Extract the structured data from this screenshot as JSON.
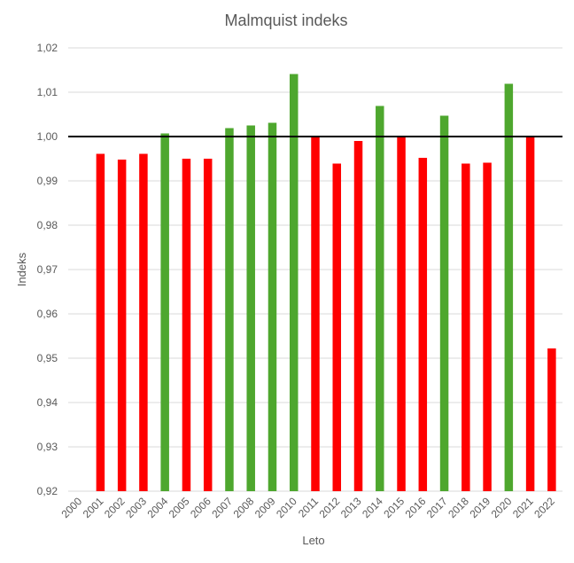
{
  "chart_data": {
    "type": "bar",
    "title": "Malmquist indeks",
    "xlabel": "Leto",
    "ylabel": "Indeks",
    "ylim": [
      0.92,
      1.02
    ],
    "yticks": [
      "0,92",
      "0,93",
      "0,94",
      "0,95",
      "0,96",
      "0,97",
      "0,98",
      "0,99",
      "1,00",
      "1,01",
      "1,02"
    ],
    "categories": [
      "2000",
      "2001",
      "2002",
      "2003",
      "2004",
      "2005",
      "2006",
      "2007",
      "2008",
      "2009",
      "2010",
      "2011",
      "2012",
      "2013",
      "2014",
      "2015",
      "2016",
      "2017",
      "2018",
      "2019",
      "2020",
      "2021",
      "2022"
    ],
    "values": [
      null,
      0.9961,
      0.9948,
      0.9961,
      1.0007,
      0.995,
      0.995,
      1.0019,
      1.0025,
      1.0031,
      1.0141,
      0.9999,
      0.9939,
      0.999,
      1.0069,
      0.9999,
      0.9952,
      1.0047,
      0.9939,
      0.9941,
      1.0119,
      1.0,
      0.9522
    ],
    "reference_line": 1.0,
    "colors": {
      "increase": "#4ea72e",
      "decrease": "#ff0000",
      "reference": "#000000",
      "grid": "#d9d9d9",
      "text": "#595959"
    },
    "grid": true,
    "legend": "none"
  }
}
